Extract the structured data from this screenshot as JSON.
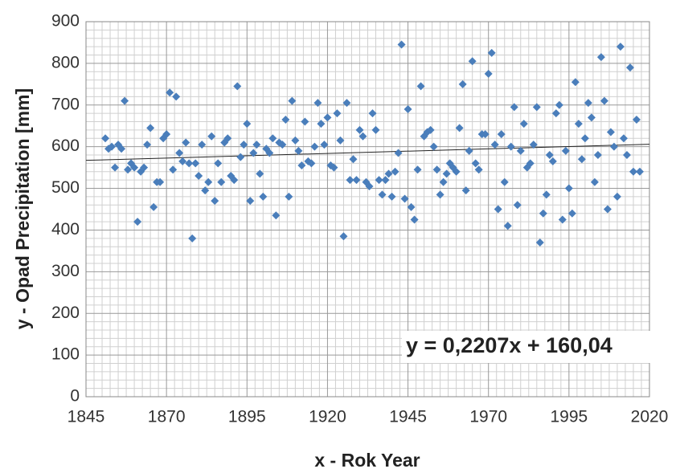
{
  "chart_data": {
    "type": "scatter",
    "xlabel": "x - Rok Year",
    "ylabel": "y - Opad Precipitation [mm]",
    "color": "#4a7ebb",
    "grid": true,
    "xlim": [
      1845,
      2020
    ],
    "xticks": [
      1845,
      1870,
      1895,
      1920,
      1945,
      1970,
      1995,
      2020
    ],
    "ylim": [
      0,
      900
    ],
    "yticks": [
      0,
      100,
      200,
      300,
      400,
      500,
      600,
      700,
      800,
      900
    ],
    "trendline": {
      "slope": 0.2207,
      "intercept": 160.04,
      "label": "y = 0,2207x + 160,04"
    },
    "x": [
      1851,
      1852,
      1853,
      1854,
      1855,
      1856,
      1857,
      1858,
      1859,
      1860,
      1861,
      1862,
      1863,
      1864,
      1865,
      1866,
      1867,
      1868,
      1869,
      1870,
      1871,
      1872,
      1873,
      1874,
      1875,
      1876,
      1877,
      1878,
      1879,
      1880,
      1881,
      1882,
      1883,
      1884,
      1885,
      1886,
      1887,
      1888,
      1889,
      1890,
      1891,
      1892,
      1893,
      1894,
      1895,
      1896,
      1897,
      1898,
      1899,
      1900,
      1901,
      1902,
      1903,
      1904,
      1905,
      1906,
      1907,
      1908,
      1909,
      1910,
      1911,
      1912,
      1913,
      1914,
      1915,
      1916,
      1917,
      1918,
      1919,
      1920,
      1921,
      1922,
      1923,
      1924,
      1925,
      1926,
      1927,
      1928,
      1929,
      1930,
      1931,
      1932,
      1933,
      1934,
      1935,
      1936,
      1937,
      1938,
      1939,
      1940,
      1941,
      1942,
      1943,
      1944,
      1945,
      1946,
      1947,
      1948,
      1949,
      1950,
      1951,
      1952,
      1953,
      1954,
      1955,
      1956,
      1957,
      1958,
      1959,
      1960,
      1961,
      1962,
      1963,
      1964,
      1965,
      1966,
      1967,
      1968,
      1969,
      1970,
      1971,
      1972,
      1973,
      1974,
      1975,
      1976,
      1977,
      1978,
      1979,
      1980,
      1981,
      1982,
      1983,
      1984,
      1985,
      1986,
      1987,
      1988,
      1989,
      1990,
      1991,
      1992,
      1993,
      1994,
      1995,
      1996,
      1997,
      1998,
      1999,
      2000,
      2001,
      2002,
      2003,
      2004,
      2005,
      2006,
      2007,
      2008,
      2009,
      2010,
      2011,
      2012,
      2013,
      2014,
      2015,
      2016,
      2017
    ],
    "values": [
      620,
      595,
      600,
      550,
      605,
      595,
      710,
      545,
      560,
      550,
      420,
      540,
      550,
      605,
      645,
      455,
      515,
      515,
      620,
      630,
      730,
      545,
      720,
      585,
      565,
      610,
      560,
      380,
      560,
      530,
      605,
      495,
      515,
      625,
      470,
      560,
      515,
      610,
      620,
      530,
      520,
      745,
      575,
      605,
      655,
      470,
      585,
      605,
      535,
      480,
      595,
      585,
      620,
      435,
      610,
      605,
      665,
      480,
      710,
      615,
      590,
      555,
      660,
      565,
      560,
      600,
      705,
      655,
      605,
      670,
      555,
      550,
      680,
      615,
      385,
      705,
      520,
      570,
      520,
      640,
      625,
      515,
      505,
      680,
      640,
      520,
      485,
      520,
      535,
      480,
      540,
      585,
      845,
      475,
      690,
      455,
      425,
      545,
      745,
      625,
      635,
      640,
      600,
      545,
      485,
      515,
      535,
      560,
      550,
      540,
      645,
      750,
      495,
      590,
      805,
      560,
      545,
      630,
      630,
      775,
      825,
      605,
      450,
      630,
      515,
      410,
      600,
      695,
      460,
      590,
      655,
      550,
      560,
      605,
      695,
      370,
      440,
      485,
      580,
      565,
      680,
      700,
      425,
      590,
      500,
      440,
      755,
      655,
      570,
      620,
      705,
      670,
      515,
      580,
      815,
      710,
      450,
      635,
      600,
      480,
      840,
      620,
      580,
      790,
      540,
      665,
      540
    ]
  }
}
